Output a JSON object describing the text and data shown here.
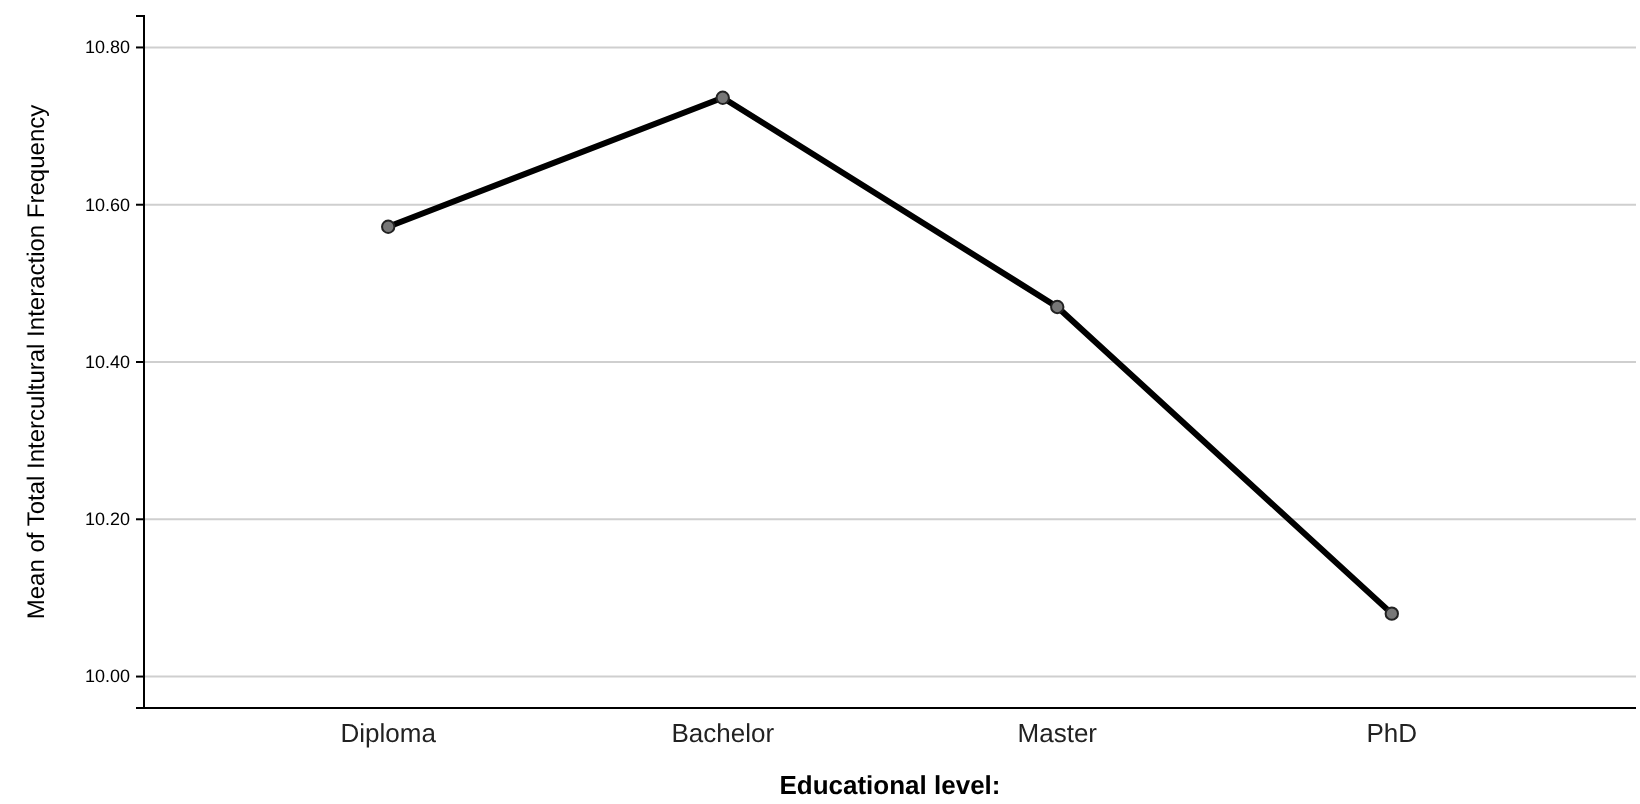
{
  "chart_data": {
    "type": "line",
    "xlabel": "Educational level:",
    "ylabel": "Mean of Total Intercultural Interaction Frequency",
    "categories": [
      "Diploma",
      "Bachelor",
      "Master",
      "PhD"
    ],
    "series": [
      {
        "color": "#000000",
        "values": [
          10.572,
          10.736,
          10.47,
          10.08
        ]
      }
    ],
    "ylim": [
      9.96,
      10.84
    ],
    "yticks": [
      {
        "value": 10.0,
        "label": "10.00"
      },
      {
        "value": 10.2,
        "label": "10.20"
      },
      {
        "value": 10.4,
        "label": "10.40"
      },
      {
        "value": 10.6,
        "label": "10.60"
      },
      {
        "value": 10.8,
        "label": "10.80"
      }
    ],
    "grid": "y",
    "marker": "circle",
    "line_style": "solid"
  }
}
